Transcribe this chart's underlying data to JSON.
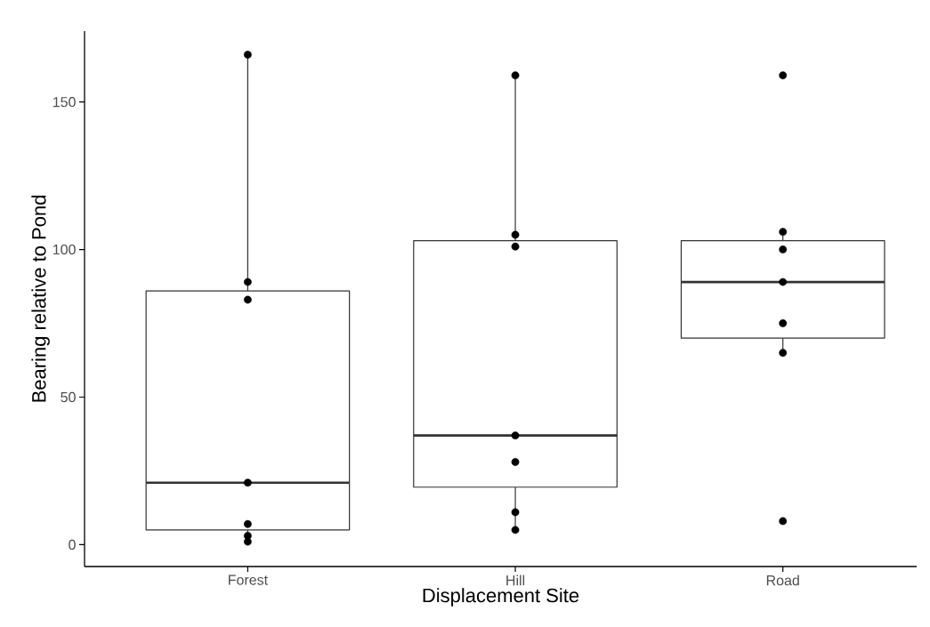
{
  "chart_data": {
    "type": "box",
    "xlabel": "Displacement Site",
    "ylabel": "Bearing relative to Pond",
    "categories": [
      "Forest",
      "Hill",
      "Road"
    ],
    "series": [
      {
        "color": "#333333",
        "boxes": [
          {
            "low": 1,
            "q1": 5,
            "median": 21,
            "q3": 86,
            "high": 166
          },
          {
            "low": 5,
            "q1": 19.5,
            "median": 37,
            "q3": 103,
            "high": 159
          },
          {
            "low": 65,
            "q1": 70,
            "median": 89,
            "q3": 103,
            "high": 106
          }
        ]
      },
      {
        "type": "scatter",
        "color": "#000000",
        "marker": "circle",
        "x": [
          "Forest",
          "Forest",
          "Forest",
          "Forest",
          "Forest",
          "Forest",
          "Forest",
          "Hill",
          "Hill",
          "Hill",
          "Hill",
          "Hill",
          "Hill",
          "Hill",
          "Road",
          "Road",
          "Road",
          "Road",
          "Road",
          "Road",
          "Road"
        ],
        "values": [
          166,
          89,
          83,
          21,
          7,
          3,
          1,
          159,
          105,
          101,
          37,
          28,
          11,
          5,
          159,
          106,
          100,
          89,
          75,
          65,
          8
        ]
      }
    ],
    "ylim": [
      -7.4,
      174
    ],
    "yticks": [
      0,
      50,
      100,
      150
    ]
  }
}
